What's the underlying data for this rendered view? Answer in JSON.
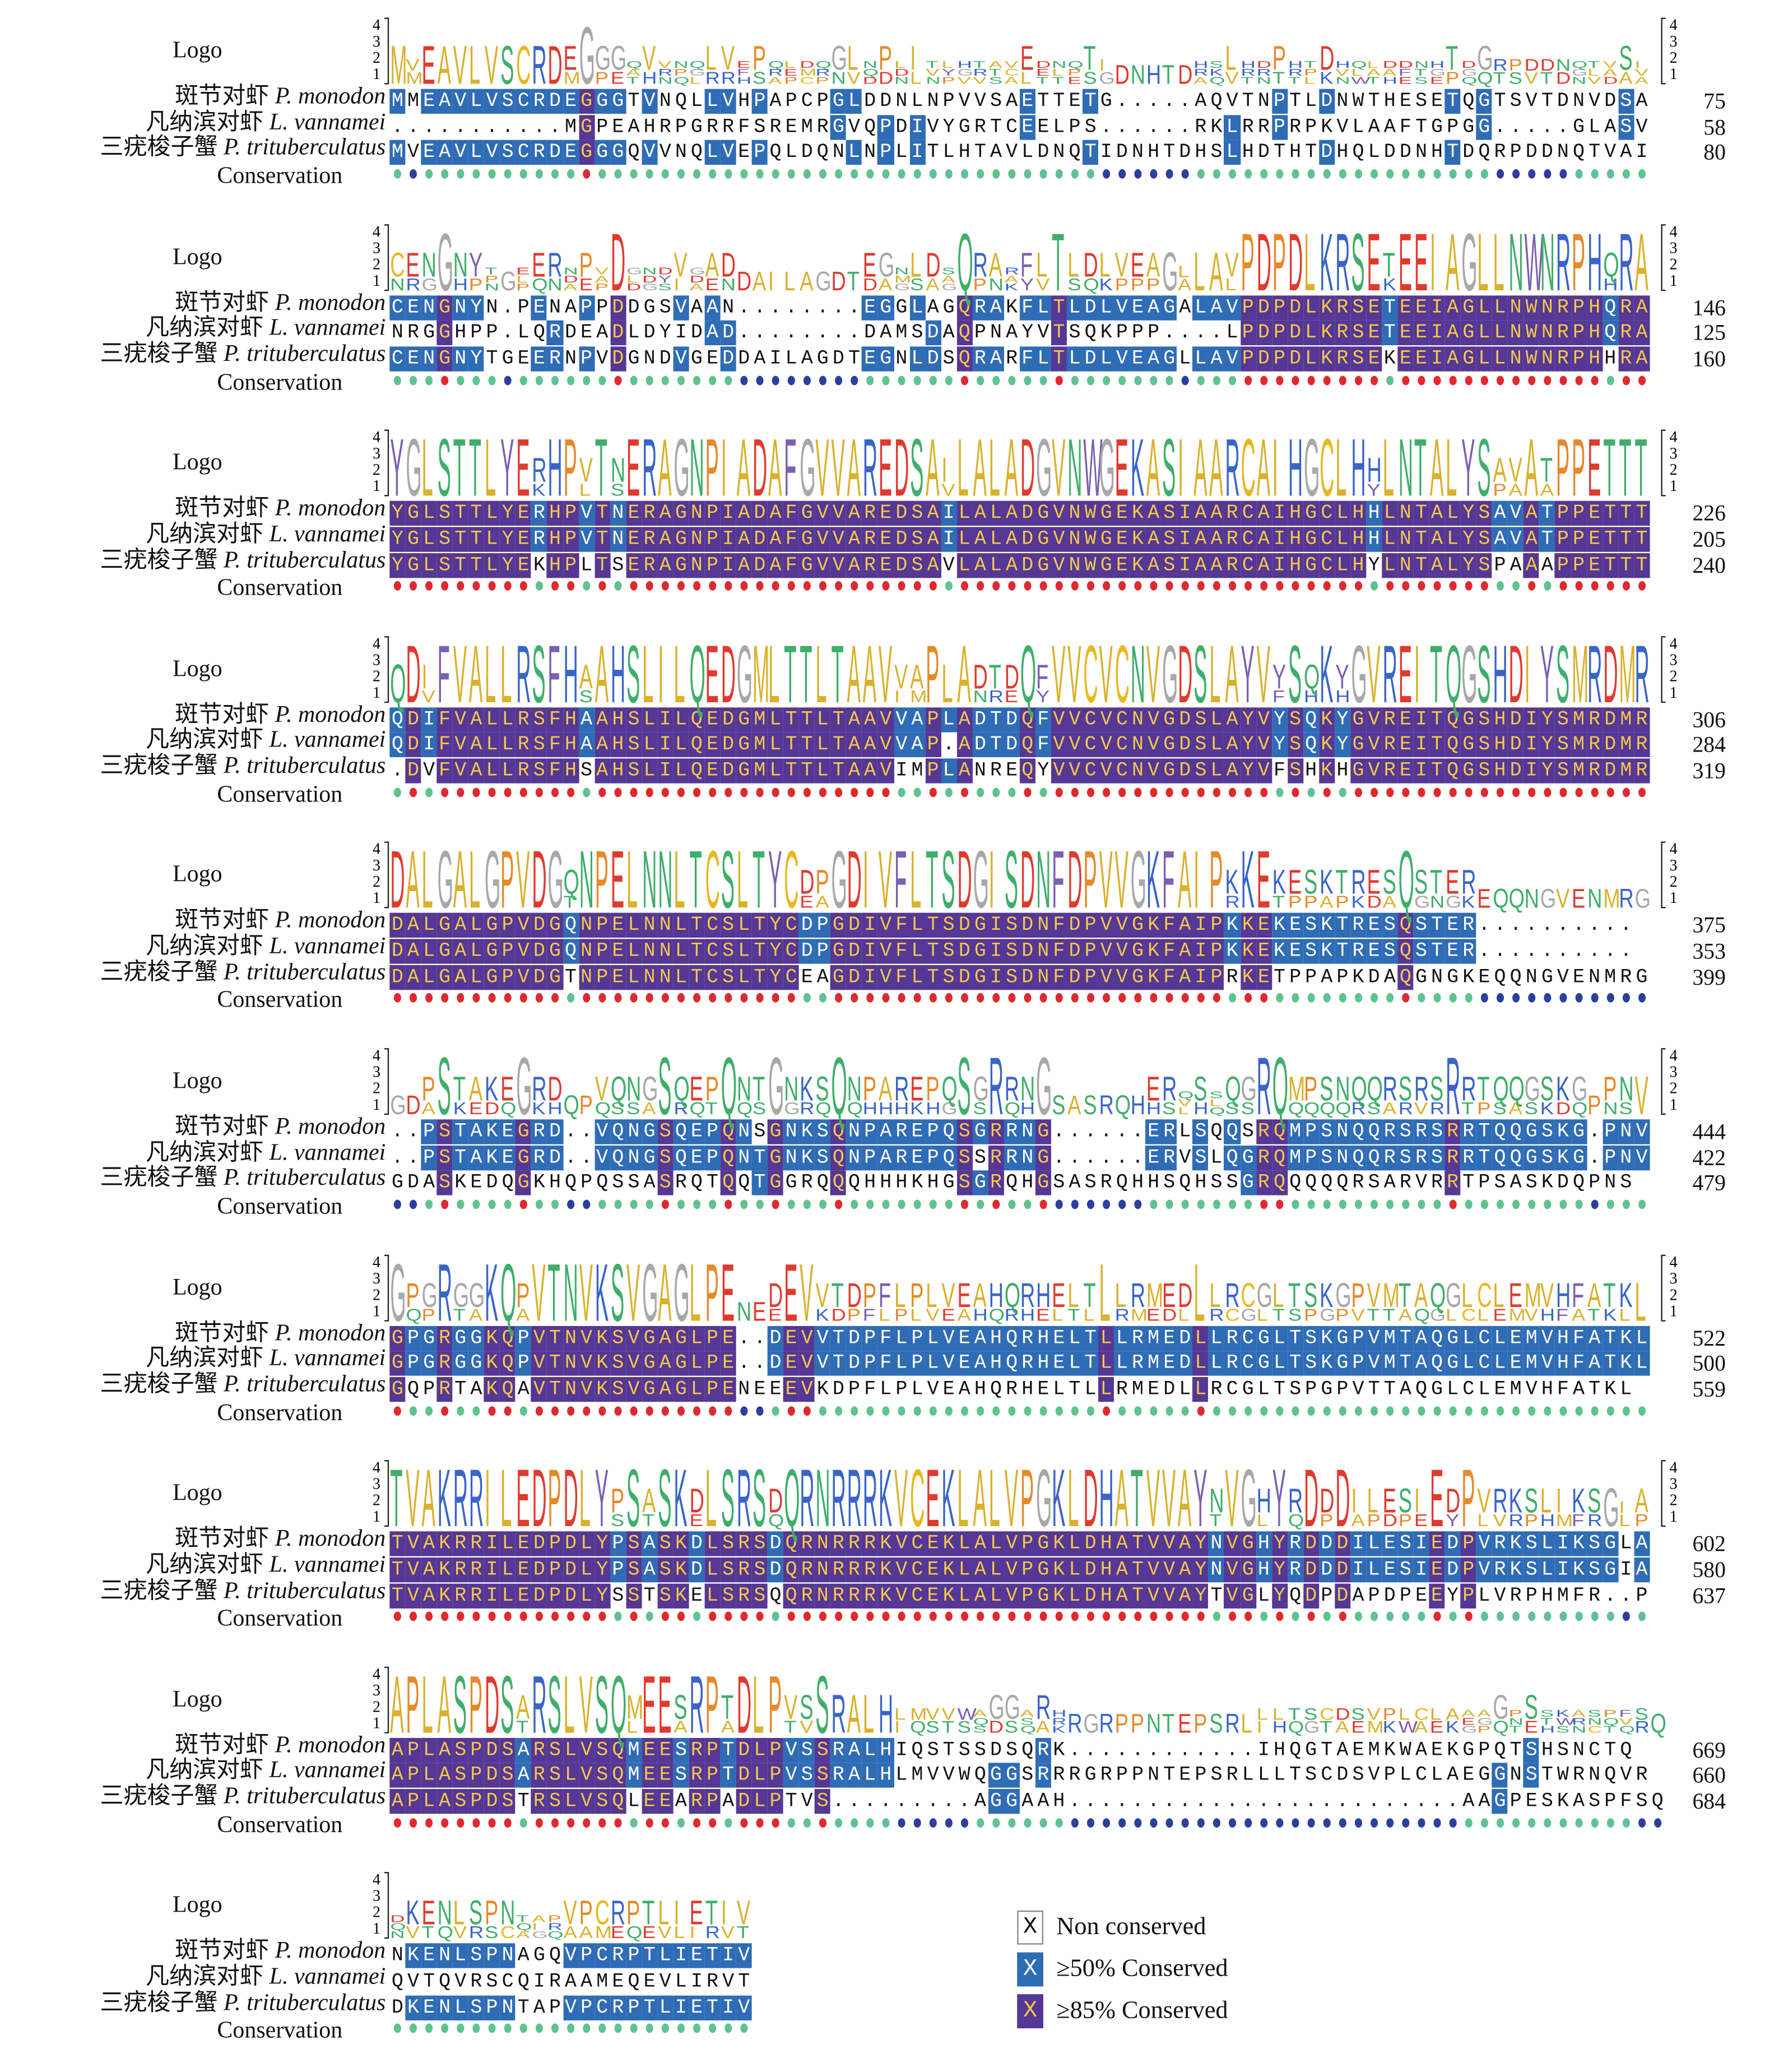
{
  "labels": {
    "logo": "Logo",
    "conservation": "Conservation",
    "species": [
      {
        "cn": "斑节对虾",
        "latin": "P. monodon"
      },
      {
        "cn": "凡纳滨对虾",
        "latin": "L. vannamei"
      },
      {
        "cn": "三疣梭子蟹",
        "latin": "P. trituberculatus"
      }
    ],
    "axis_ticks": [
      "4",
      "3",
      "2",
      "1"
    ]
  },
  "blocks": [
    {
      "seqs": [
        "MMEAVLVSCRDEGGGTVNQLLVHPAPCPGLDDNLNPVVSAETTETG.....AQVTNPTLDNWTHESETQGTSVTDNVDSA",
        "...........MGPEAHRPGRRFSREMRGVQPDIVYGRTCEELPS......RKLRRPRPKVLAAFTGPGG.....GLASV",
        "MVEAVLVSCRDEGGGQVVNQLVEPQLDQNLNPLITLHTAVLDNQTIDNHTDHSLHDTHTDHQLDDNHTDQRPDDNQTVAI"
      ],
      "ends": [
        "75",
        "58",
        "80"
      ]
    },
    {
      "seqs": [
        "CENGNYN.PENAPPDDGSVAAN........EGGLAGQRAKFLTLDLVEAGALAVPDPDLKRSETEEIAGLLNWNRPHQRA",
        "NRGGHPP.LQRDEADLDYIDAD........DAMSDAQPNAYVTSQKPPP....LPDPDLKRSETEEIAGLLNWNRPHQRA",
        "CENGNYTGEERNPVDGNDVGEDDAILAGDTEGNLDSQRARFLTLDLVEAGLLAVPDPDLKRSEKEEIAGLLNWNRPHHRA"
      ],
      "ends": [
        "146",
        "125",
        "160"
      ]
    },
    {
      "seqs": [
        "YGLSTTLYERHPVTNERAGNPIADAFGVVAREDSAILALADGVNWGEKASIAARCAIHGCLHHLNTALYSAVATPPETTT",
        "YGLSTTLYERHPVTNERAGNPIADAFGVVAREDSAILALADGVNWGEKASIAARCAIHGCLHHLNTALYSAVATPPETTT",
        "YGLSTTLYEKHPLTSERAGNPIADAFGVVAREDSAVLALADGVNWGEKASIAARCAIHGCLHYLNTALYSPAAAPPETTT"
      ],
      "ends": [
        "226",
        "205",
        "240"
      ]
    },
    {
      "seqs": [
        "QDIFVALLRSFHAAHSLILQEDGMLTTLTAAVVAPLADTDQFVVCVCNVGDSLAYVYSQKYGVREITQGSHDIYSMRDMR",
        "QDIFVALLRSFHAAHSLILQEDGMLTTLTAAVVAP.ADTDQFVVCVCNVGDSLAYVYSQKYGVREITQGSHDIYSMRDMR",
        ".DVFVALLRSFHSAHSLILQEDGMLTTLTAAVIMPLANREQYVVCVCNVGDSLAYVFSHKHGVREITQGSHDIYSMRDMR"
      ],
      "ends": [
        "306",
        "284",
        "319"
      ]
    },
    {
      "seqs": [
        "DALGALGPVDGQNPELNNLTCSLTYCDPGDIVFLTSDGISDNFDPVVGKFAIPKKEKESKTRESQSTER..........",
        "DALGALGPVDGQNPELNNLTCSLTYCDPGDIVFLTSDGISDNFDPVVGKFAIPKKEKESKTRESQSTER..........",
        "DALGALGPVDGTNPELNNLTCSLTYCEAGDIVFLTSDGISDNFDPVVGKFAIPRKETPPAPKDAQGNGKEQQNGVENMRG"
      ],
      "ends": [
        "375",
        "353",
        "399"
      ]
    },
    {
      "seqs": [
        "..PSTAKEGRD..VQNGSQEPQNSGNKSQNPAREPQSGRRNG......ERLSQQSRQMPSNQQRSRSRRTQQGSKG.PNV",
        "..PSTAKEGRD..VQNGSQEPQNTGNKSQNPAREPQSSRRNG......ERVSLQGRQMPSNQQRSRSRRTQQGSKG.PNV",
        "GDASKEDQGKHQPQSSASRQTQQTGGRQQQHHHKHGSGRQHGSASRQHHSQHSSGRQQQQQRSARVRRTPSASKDQPNS"
      ],
      "ends": [
        "444",
        "422",
        "479"
      ]
    },
    {
      "seqs": [
        "GPGRGGKQPVTNVKSVGAGLPE..DEVVTDPFLPLVEAHQRHELTLLRMEDLLRCGLTSKGPVMTAQGLCLEMVHFATKL",
        "GPGRGGKQPVTNVKSVGAGLPE..DEVVTDPFLPLVEAHQRHELTLLRMEDLLRCGLTSKGPVMTAQGLCLEMVHFATKL",
        "GQPRTAKQAVTNVKSVGAGLPENEEEVKDPFLPLVEAHQRHELTLLRMEDLLRCGLTSPGPVTTAQGLCLEMVHFATKL"
      ],
      "ends": [
        "522",
        "500",
        "559"
      ]
    },
    {
      "seqs": [
        "TVAKRRILEDPDLYPSASKDLSRSDQRNRRRKVCEKLALVPGKLDHATVVAYNVGHYRDDDILESIEDPVRKSLIKSGLA",
        "TVAKRRILEDPDLYPSASKDLSRSDQRNRRRKVCEKLALVPGKLDHATVVAYNVGHYRDDDILESIEDPVRKSLIKSGIA",
        "TVAKRRILEDPDLYSSTSKELSRSQQRNRRRKVCEKLALVPGKLDHATVVAYTVGLYQDPDAPDPEEYPLVRPHMFR..P"
      ],
      "ends": [
        "602",
        "580",
        "637"
      ]
    },
    {
      "seqs": [
        "APLASPDSARSLVSQMEESRPTDLPVSSRALHIQSTSSDSQRK............IHQGTAEMKWAEKGPQTSHSNCTQ",
        "APLASPDSARSLVSQMEESRPTDLPVSSRALHLMVVWQGGSRRRGRPPNTEPSRLLLTSCDSVPLCLAEGGNSTWRNQVR",
        "APLASPDSTRSLVSQLEEARPADLPTVS.........AGGAAH.........................AAGPESKASPFSQ"
      ],
      "ends": [
        "669",
        "660",
        "684"
      ]
    },
    {
      "seqs": [
        "NKENLSPNAGQVPCRPTLIETIV",
        "QVTQVRSCQIRAAMEQEVLIRVT",
        "DKENLSPNTAPVPCRPTLIETIV"
      ],
      "ends": [
        "",
        "",
        ""
      ]
    }
  ],
  "legend": [
    {
      "glyph": "X",
      "text": "Non conserved",
      "level": "none"
    },
    {
      "glyph": "X",
      "text": "≥50% Conserved",
      "level": "50"
    },
    {
      "glyph": "X",
      "text": "≥85% Conserved",
      "level": "85"
    }
  ],
  "colors": {
    "conserved85_bg": "#553795",
    "conserved85_fg": "#f2c84b",
    "conserved50_bg": "#2f6cb6",
    "conserved50_fg": "#ffffff",
    "dot_full": "#e0292e",
    "dot_partial": "#5fc391",
    "dot_none": "#2b3f9c"
  }
}
